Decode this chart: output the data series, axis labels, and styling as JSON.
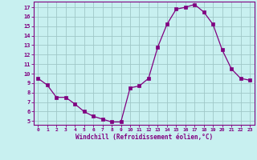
{
  "x": [
    0,
    1,
    2,
    3,
    4,
    5,
    6,
    7,
    8,
    9,
    10,
    11,
    12,
    13,
    14,
    15,
    16,
    17,
    18,
    19,
    20,
    21,
    22,
    23
  ],
  "y": [
    9.5,
    8.8,
    7.5,
    7.5,
    6.8,
    6.0,
    5.5,
    5.2,
    4.9,
    4.9,
    8.5,
    8.7,
    9.5,
    12.8,
    15.2,
    16.8,
    17.0,
    17.3,
    16.5,
    15.2,
    12.5,
    10.5,
    9.5,
    9.3
  ],
  "line_color": "#800080",
  "marker": "s",
  "marker_size": 2.5,
  "background_color": "#c8f0f0",
  "grid_color": "#a0c8c8",
  "xlabel": "Windchill (Refroidissement éolien,°C)",
  "xlabel_color": "#800080",
  "tick_color": "#800080",
  "ylim": [
    4.6,
    17.6
  ],
  "xlim": [
    -0.5,
    23.5
  ],
  "yticks": [
    5,
    6,
    7,
    8,
    9,
    10,
    11,
    12,
    13,
    14,
    15,
    16,
    17
  ],
  "xticks": [
    0,
    1,
    2,
    3,
    4,
    5,
    6,
    7,
    8,
    9,
    10,
    11,
    12,
    13,
    14,
    15,
    16,
    17,
    18,
    19,
    20,
    21,
    22,
    23
  ],
  "xtick_labels": [
    "0",
    "1",
    "2",
    "3",
    "4",
    "5",
    "6",
    "7",
    "8",
    "9",
    "10",
    "11",
    "12",
    "13",
    "14",
    "15",
    "16",
    "17",
    "18",
    "19",
    "20",
    "21",
    "22",
    "23"
  ]
}
